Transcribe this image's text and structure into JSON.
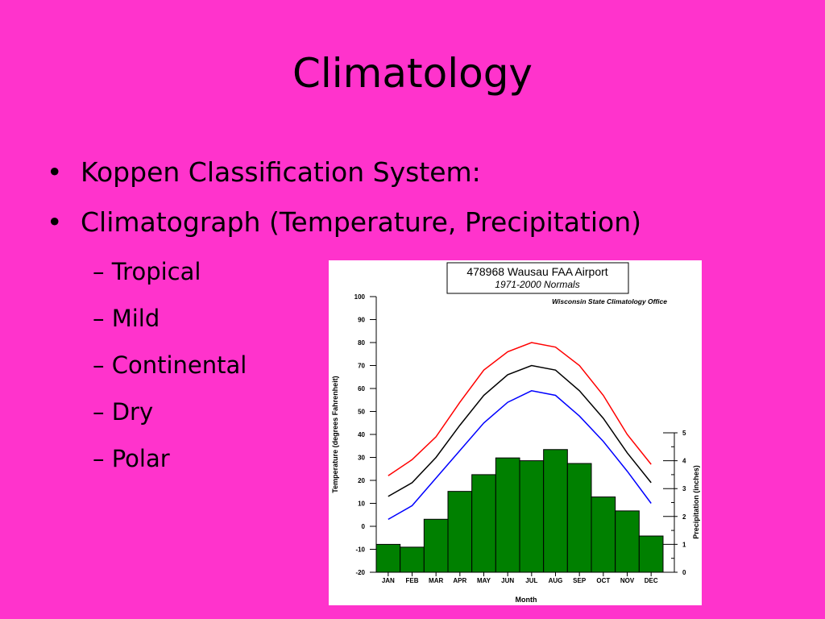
{
  "slide": {
    "title": "Climatology",
    "bullets": [
      "Koppen Classification System:",
      "Climatograph (Temperature, Precipitation)"
    ],
    "sub_bullets": [
      "Tropical",
      "Mild",
      "Continental",
      "Dry",
      "Polar"
    ],
    "bullet_char": "•",
    "sub_bullet_char": "–"
  },
  "chart_data": {
    "type": "bar",
    "title": "478968 Wausau FAA Airport",
    "subtitle": "1971-2000 Normals",
    "source": "Wisconsin State Climatology Office",
    "categories": [
      "JAN",
      "FEB",
      "MAR",
      "APR",
      "MAY",
      "JUN",
      "JUL",
      "AUG",
      "SEP",
      "OCT",
      "NOV",
      "DEC"
    ],
    "xlabel": "Month",
    "ylabel": "Temperature (degrees Fahrenheit)",
    "y2label": "Precipitation (inches)",
    "ylim": [
      -20,
      100
    ],
    "y2lim": [
      0,
      5
    ],
    "yticks": [
      -20,
      -10,
      0,
      10,
      20,
      30,
      40,
      50,
      60,
      70,
      80,
      90,
      100
    ],
    "y2ticks": [
      0,
      1,
      2,
      3,
      4,
      5
    ],
    "bars": {
      "axis": "y2",
      "values": [
        1.0,
        0.9,
        1.9,
        2.9,
        3.5,
        4.1,
        4.0,
        4.4,
        3.9,
        2.7,
        2.2,
        1.3
      ],
      "color": "#008000"
    },
    "series": [
      {
        "values": [
          22,
          29,
          39,
          54,
          68,
          76,
          80,
          78,
          70,
          57,
          40,
          27
        ],
        "color": "#ff0000"
      },
      {
        "values": [
          13,
          19,
          30,
          44,
          57,
          66,
          70,
          68,
          59,
          47,
          32,
          19
        ],
        "color": "#000000"
      },
      {
        "values": [
          3,
          9,
          21,
          33,
          45,
          54,
          59,
          57,
          48,
          37,
          24,
          10
        ],
        "color": "#0000ff"
      }
    ],
    "grid": false
  }
}
